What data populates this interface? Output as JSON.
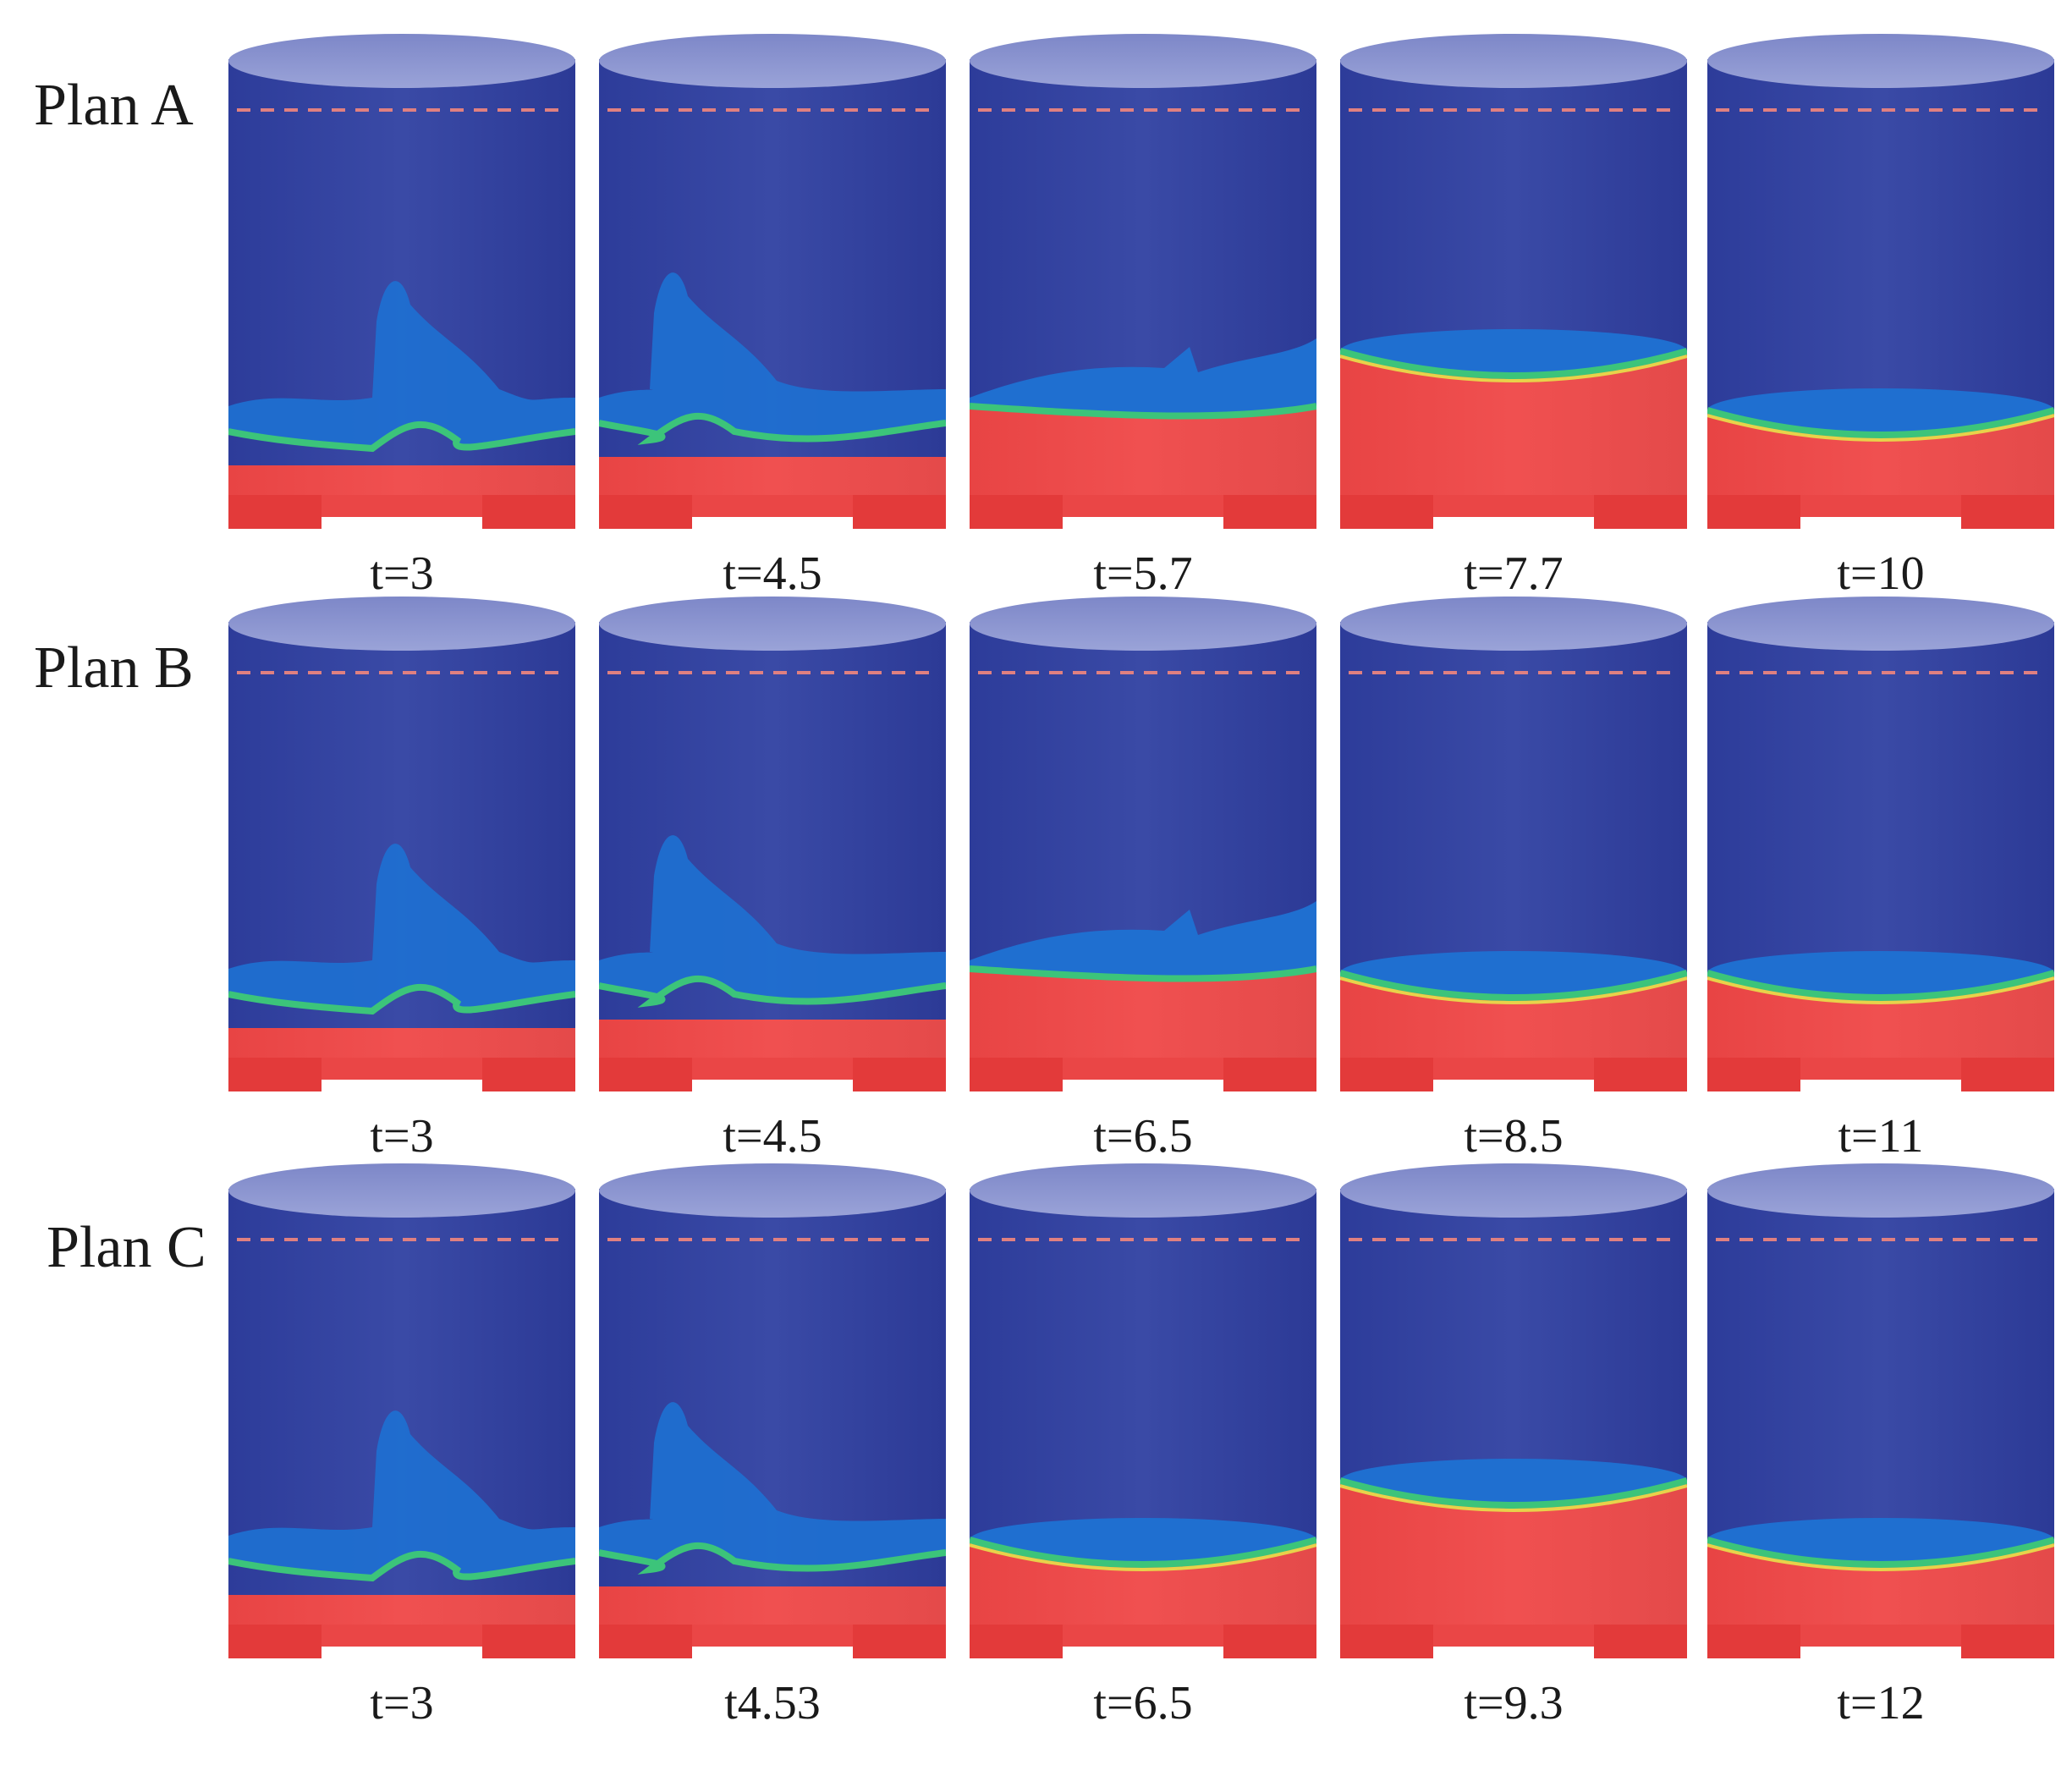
{
  "figure": {
    "rows": [
      {
        "label": "Plan A",
        "frames": [
          {
            "time": "t=3",
            "stage": "splash"
          },
          {
            "time": "t=4.5",
            "stage": "spread"
          },
          {
            "time": "t=5.7",
            "stage": "rising"
          },
          {
            "time": "t=7.7",
            "stage": "high"
          },
          {
            "time": "t=10",
            "stage": "settled"
          }
        ]
      },
      {
        "label": "Plan B",
        "frames": [
          {
            "time": "t=3",
            "stage": "splash"
          },
          {
            "time": "t=4.5",
            "stage": "spread"
          },
          {
            "time": "t=6.5",
            "stage": "rising"
          },
          {
            "time": "t=8.5",
            "stage": "settled"
          },
          {
            "time": "t=11",
            "stage": "settled"
          }
        ]
      },
      {
        "label": "Plan C",
        "frames": [
          {
            "time": "t=3",
            "stage": "splash"
          },
          {
            "time": "t4.53",
            "stage": "spread"
          },
          {
            "time": "t=6.5",
            "stage": "settled"
          },
          {
            "time": "t=9.3",
            "stage": "high"
          },
          {
            "time": "t=12",
            "stage": "settled"
          }
        ]
      }
    ],
    "colors": {
      "tank_blue": "#3a4aa6",
      "tank_top": "#9aa3d8",
      "interface_blue": "#1f6fd0",
      "liquid_red": "#f05050",
      "interface_green": "#3cc47a",
      "interface_yellow": "#e8d24a",
      "dashed_line": "#e08080"
    }
  }
}
